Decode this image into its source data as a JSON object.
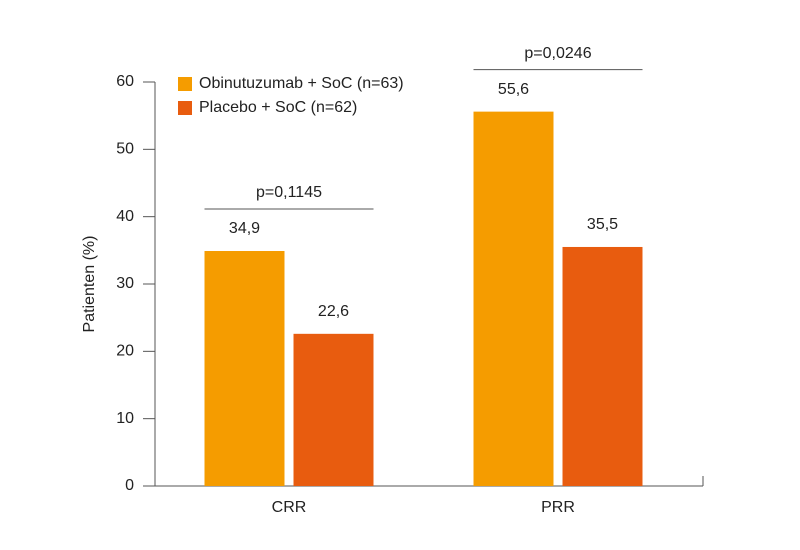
{
  "chart_data": {
    "type": "bar",
    "y_label": "Patienten (%)",
    "categories": [
      "CRR",
      "PRR"
    ],
    "series": [
      {
        "name": "Obinutuzumab + SoC (n=63)",
        "color": "#f59c00",
        "values": [
          34.9,
          55.6
        ],
        "value_labels": [
          "34,9",
          "55,6"
        ]
      },
      {
        "name": "Placebo + SoC (n=62)",
        "color": "#e85c0f",
        "values": [
          22.6,
          35.5
        ],
        "value_labels": [
          "22,6",
          "35,5"
        ]
      }
    ],
    "annotations": [
      "p=0,1145",
      "p=0,0246"
    ],
    "ylim": [
      0,
      60
    ],
    "yticks": [
      0,
      10,
      20,
      30,
      40,
      50,
      60
    ],
    "grid": false,
    "legend": "top-left"
  }
}
